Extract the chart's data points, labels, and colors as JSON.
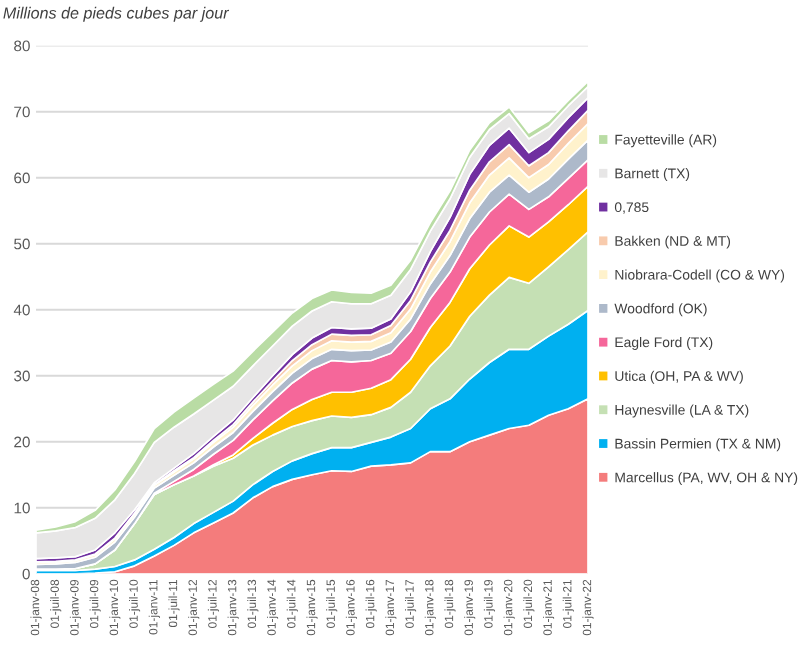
{
  "chart_data": {
    "type": "area",
    "stacked": true,
    "ylabel": "Millions de pieds cubes par jour",
    "categories": [
      "01-janv-08",
      "01-juil-08",
      "01-janv-09",
      "01-juil-09",
      "01-janv-10",
      "01-juil-10",
      "01-janv-11",
      "01-juil-11",
      "01-janv-12",
      "01-juil-12",
      "01-janv-13",
      "01-juil-13",
      "01-janv-14",
      "01-juil-14",
      "01-janv-15",
      "01-juil-15",
      "01-janv-16",
      "01-juil-16",
      "01-janv-17",
      "01-juil-17",
      "01-janv-18",
      "01-juil-18",
      "01-janv-19",
      "01-juil-19",
      "01-janv-20",
      "01-juil-20",
      "01-janv-21",
      "01-juil-21",
      "01-janv-22"
    ],
    "ylim": [
      0,
      80
    ],
    "yticks": [
      0,
      10,
      20,
      30,
      40,
      50,
      60,
      70,
      80
    ],
    "grid": "y",
    "legend": "right",
    "series": [
      {
        "name": "Marcellus (PA, WV, OH & NY)",
        "color": "#f47c7c",
        "values": [
          0,
          0,
          0,
          0.1,
          0.3,
          1.2,
          2.7,
          4.3,
          6.2,
          7.7,
          9.2,
          11.5,
          13.2,
          14.3,
          15.0,
          15.6,
          15.5,
          16.3,
          16.5,
          16.8,
          18.5,
          18.5,
          20.0,
          21.0,
          22.0,
          22.5,
          24.0,
          25.0,
          26.5
        ]
      },
      {
        "name": "Bassin Permien (TX & NM)",
        "color": "#00b0f0",
        "values": [
          0.5,
          0.5,
          0.5,
          0.6,
          0.8,
          0.9,
          1.0,
          1.2,
          1.4,
          1.6,
          1.8,
          2.0,
          2.3,
          2.8,
          3.2,
          3.5,
          3.6,
          3.6,
          4.2,
          5.2,
          6.5,
          8.0,
          9.5,
          11.0,
          12.0,
          11.5,
          12.0,
          12.8,
          13.4
        ]
      },
      {
        "name": "Haynesville (LA & TX)",
        "color": "#c5e0b4",
        "values": [
          0.2,
          0.2,
          0.3,
          0.8,
          2.5,
          5.5,
          8.3,
          8.0,
          7.2,
          7.0,
          6.5,
          6.0,
          5.5,
          5.2,
          5.0,
          4.8,
          4.6,
          4.2,
          4.5,
          5.5,
          6.5,
          8.0,
          9.5,
          10.2,
          10.9,
          10.0,
          10.5,
          11.3,
          11.9
        ]
      },
      {
        "name": "Utica (OH, PA & WV)",
        "color": "#ffc000",
        "values": [
          0,
          0,
          0,
          0,
          0,
          0,
          0,
          0,
          0,
          0.2,
          0.5,
          1.0,
          1.8,
          2.6,
          3.2,
          3.6,
          3.8,
          4.0,
          4.2,
          5.0,
          5.8,
          6.6,
          7.2,
          7.6,
          7.8,
          7.0,
          6.8,
          6.8,
          6.9
        ]
      },
      {
        "name": "Eagle Ford (TX)",
        "color": "#f5679a",
        "values": [
          0,
          0,
          0,
          0,
          0,
          0,
          0.2,
          0.5,
          1.0,
          1.6,
          2.2,
          2.8,
          3.4,
          4.0,
          4.6,
          4.8,
          4.6,
          4.2,
          4.0,
          4.2,
          4.4,
          4.6,
          4.8,
          5.0,
          4.8,
          4.2,
          3.8,
          4.0,
          4.0
        ]
      },
      {
        "name": "Woodford (OK)",
        "color": "#adb9ca",
        "values": [
          0.7,
          0.8,
          0.9,
          1.0,
          1.2,
          1.0,
          0.8,
          0.9,
          1.0,
          1.1,
          1.2,
          1.3,
          1.4,
          1.5,
          1.6,
          1.7,
          1.7,
          1.6,
          1.7,
          1.9,
          2.2,
          2.5,
          2.8,
          3.0,
          2.9,
          2.6,
          2.7,
          2.9,
          3.0
        ]
      },
      {
        "name": "Niobrara-Codell (CO & WY)",
        "color": "#fff2cc",
        "values": [
          0.3,
          0.3,
          0.3,
          0.4,
          0.5,
          0.5,
          0.4,
          0.5,
          0.6,
          0.7,
          0.8,
          0.9,
          1.0,
          1.1,
          1.2,
          1.3,
          1.3,
          1.3,
          1.4,
          1.5,
          1.8,
          2.1,
          2.4,
          2.6,
          2.6,
          2.2,
          2.2,
          2.4,
          2.5
        ]
      },
      {
        "name": "Bakken (ND & MT)",
        "color": "#f8cbad",
        "values": [
          0.1,
          0.1,
          0.1,
          0.1,
          0.1,
          0.1,
          0.1,
          0.2,
          0.2,
          0.3,
          0.4,
          0.5,
          0.6,
          0.8,
          0.9,
          1.0,
          1.0,
          1.0,
          1.1,
          1.3,
          1.5,
          1.7,
          1.9,
          2.0,
          2.0,
          1.8,
          1.8,
          1.9,
          2.0
        ]
      },
      {
        "name": "0,785",
        "color": "#7030a0",
        "values": [
          0.5,
          0.5,
          0.5,
          0.6,
          0.8,
          0.5,
          0.3,
          0.4,
          0.6,
          0.6,
          0.7,
          0.7,
          0.8,
          0.9,
          1.0,
          1.0,
          1.0,
          1.0,
          1.0,
          1.3,
          1.6,
          2.0,
          2.4,
          2.5,
          2.5,
          2.0,
          2.0,
          2.0,
          1.9
        ]
      },
      {
        "name": "Barnett (TX)",
        "color": "#e7e6e6",
        "values": [
          3.9,
          4.1,
          4.4,
          4.8,
          5.0,
          5.5,
          6.1,
          6.2,
          6.0,
          5.5,
          5.1,
          4.8,
          4.5,
          4.3,
          4.1,
          3.9,
          3.8,
          3.7,
          3.6,
          3.4,
          3.1,
          2.8,
          2.6,
          2.4,
          2.2,
          2.1,
          1.9,
          1.8,
          1.7
        ]
      },
      {
        "name": "Fayetteville (AR)",
        "color": "#b9dca4",
        "values": [
          0.4,
          0.6,
          0.9,
          1.2,
          1.5,
          1.8,
          2.1,
          2.3,
          2.4,
          2.4,
          2.3,
          2.2,
          2.1,
          2.0,
          1.9,
          1.8,
          1.7,
          1.6,
          1.5,
          1.4,
          1.3,
          1.2,
          1.1,
          1.0,
          1.0,
          0.9,
          0.9,
          0.8,
          0.8
        ]
      }
    ]
  }
}
